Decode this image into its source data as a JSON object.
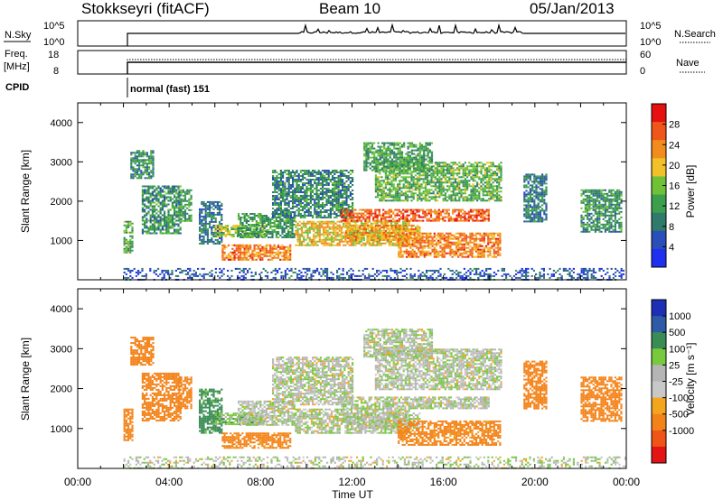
{
  "header": {
    "station": "Stokkseyri (fitACF)",
    "beam": "Beam 10",
    "date": "05/Jan/2013"
  },
  "strip_panels": {
    "nsky": {
      "label": "N.Sky",
      "ticks_left": [
        "10^5",
        "10^0"
      ]
    },
    "nsearch": {
      "label": "N.Search",
      "ticks_right": [
        "10^5",
        "10^0"
      ]
    },
    "freq": {
      "label_line1": "Freq.",
      "label_line2": "[MHz]",
      "ticks_left": [
        "18",
        "8"
      ]
    },
    "nave": {
      "label": "Nave",
      "ticks_right": [
        "60",
        "0"
      ]
    },
    "cpid": {
      "label": "CPID",
      "mode_text": "normal (fast) 151"
    }
  },
  "colors": {
    "power_scale": [
      "#1e2ff0",
      "#2b4fb8",
      "#2f7a6a",
      "#3c9f4c",
      "#6fc238",
      "#f2c12a",
      "#f28c1c",
      "#f0561a",
      "#e61010"
    ],
    "velocity_scale": [
      "#e51414",
      "#ef5516",
      "#f38319",
      "#f3a61d",
      "#c8c8c8",
      "#b5b5b5",
      "#79c93e",
      "#3a8c55",
      "#2e5aa6",
      "#1f2fb5"
    ]
  },
  "chart_data": [
    {
      "type": "heatmap",
      "title": "Power",
      "ylabel": "Slant Range [km]",
      "yticks": [
        "1000",
        "2000",
        "3000",
        "4000"
      ],
      "ylim": [
        0,
        4500
      ],
      "colorbar_label": "Power [dB]",
      "colorbar_ticks": [
        "4",
        "8",
        "12",
        "16",
        "20",
        "24",
        "28"
      ],
      "colorbar_range": [
        0,
        32
      ],
      "grid": false,
      "echo_regions": [
        {
          "t0": 2.0,
          "t1": 2.4,
          "r0": 700,
          "r1": 1500,
          "value": 14
        },
        {
          "t0": 2.3,
          "t1": 3.3,
          "r0": 2600,
          "r1": 3300,
          "value": 10
        },
        {
          "t0": 2.8,
          "t1": 4.5,
          "r0": 1200,
          "r1": 2400,
          "value": 11
        },
        {
          "t0": 4.4,
          "t1": 5.0,
          "r0": 1500,
          "r1": 2300,
          "value": 12
        },
        {
          "t0": 5.3,
          "t1": 6.3,
          "r0": 900,
          "r1": 2000,
          "value": 8
        },
        {
          "t0": 6.0,
          "t1": 8.2,
          "r0": 1100,
          "r1": 1400,
          "value": 16
        },
        {
          "t0": 6.3,
          "t1": 9.3,
          "r0": 500,
          "r1": 900,
          "value": 24
        },
        {
          "t0": 7.0,
          "t1": 9.5,
          "r0": 1100,
          "r1": 1700,
          "value": 12
        },
        {
          "t0": 8.5,
          "t1": 12.0,
          "r0": 1600,
          "r1": 2800,
          "value": 10
        },
        {
          "t0": 9.5,
          "t1": 14.5,
          "r0": 900,
          "r1": 1500,
          "value": 20
        },
        {
          "t0": 11.5,
          "t1": 18.0,
          "r0": 1500,
          "r1": 1800,
          "value": 26
        },
        {
          "t0": 11.7,
          "t1": 15.0,
          "r0": 1000,
          "r1": 1400,
          "value": 22
        },
        {
          "t0": 13.0,
          "t1": 18.5,
          "r0": 2000,
          "r1": 3000,
          "value": 14
        },
        {
          "t0": 14.0,
          "t1": 18.5,
          "r0": 600,
          "r1": 1200,
          "value": 24
        },
        {
          "t0": 12.5,
          "t1": 15.5,
          "r0": 2800,
          "r1": 3500,
          "value": 12
        },
        {
          "t0": 19.5,
          "t1": 20.5,
          "r0": 1500,
          "r1": 2700,
          "value": 9
        },
        {
          "t0": 22.0,
          "t1": 23.8,
          "r0": 1200,
          "r1": 2300,
          "value": 11
        },
        {
          "t0": 2.0,
          "t1": 24.0,
          "r0": 0,
          "r1": 300,
          "value": 6
        }
      ]
    },
    {
      "type": "heatmap",
      "title": "Velocity",
      "ylabel": "Slant Range [km]",
      "yticks": [
        "1000",
        "2000",
        "3000",
        "4000"
      ],
      "ylim": [
        0,
        4500
      ],
      "xlabel": "Time UT",
      "xticks": [
        "00:00",
        "04:00",
        "08:00",
        "12:00",
        "16:00",
        "20:00",
        "00:00"
      ],
      "xlim": [
        0,
        24
      ],
      "colorbar_label": "Velocity [m s⁻¹]",
      "colorbar_ticks": [
        "1000",
        "500",
        "100",
        "25",
        "-25",
        "-100",
        "-500",
        "-1000"
      ],
      "grid": false,
      "echo_regions": [
        {
          "t0": 2.0,
          "t1": 2.4,
          "r0": 700,
          "r1": 1500,
          "value": -300
        },
        {
          "t0": 2.3,
          "t1": 3.3,
          "r0": 2600,
          "r1": 3300,
          "value": -300
        },
        {
          "t0": 2.8,
          "t1": 4.5,
          "r0": 1200,
          "r1": 2400,
          "value": -300
        },
        {
          "t0": 4.4,
          "t1": 5.0,
          "r0": 1500,
          "r1": 2300,
          "value": -200
        },
        {
          "t0": 5.3,
          "t1": 6.3,
          "r0": 900,
          "r1": 2000,
          "value": 150
        },
        {
          "t0": 6.0,
          "t1": 8.2,
          "r0": 1100,
          "r1": 1400,
          "value": 60
        },
        {
          "t0": 6.3,
          "t1": 9.3,
          "r0": 500,
          "r1": 900,
          "value": -150
        },
        {
          "t0": 7.0,
          "t1": 9.5,
          "r0": 1100,
          "r1": 1700,
          "value": 0
        },
        {
          "t0": 8.5,
          "t1": 12.0,
          "r0": 1600,
          "r1": 2800,
          "value": 0
        },
        {
          "t0": 9.5,
          "t1": 14.5,
          "r0": 900,
          "r1": 1500,
          "value": 0
        },
        {
          "t0": 11.5,
          "t1": 18.0,
          "r0": 1500,
          "r1": 1800,
          "value": 0
        },
        {
          "t0": 11.7,
          "t1": 15.0,
          "r0": 1000,
          "r1": 1400,
          "value": 0
        },
        {
          "t0": 13.0,
          "t1": 18.5,
          "r0": 2000,
          "r1": 3000,
          "value": 0
        },
        {
          "t0": 14.0,
          "t1": 18.5,
          "r0": 600,
          "r1": 1200,
          "value": -150
        },
        {
          "t0": 12.5,
          "t1": 15.5,
          "r0": 2800,
          "r1": 3500,
          "value": 0
        },
        {
          "t0": 19.5,
          "t1": 20.5,
          "r0": 1500,
          "r1": 2700,
          "value": -400
        },
        {
          "t0": 22.0,
          "t1": 23.8,
          "r0": 1200,
          "r1": 2300,
          "value": -400
        },
        {
          "t0": 2.0,
          "t1": 24.0,
          "r0": 0,
          "r1": 300,
          "value": 0
        }
      ]
    }
  ]
}
